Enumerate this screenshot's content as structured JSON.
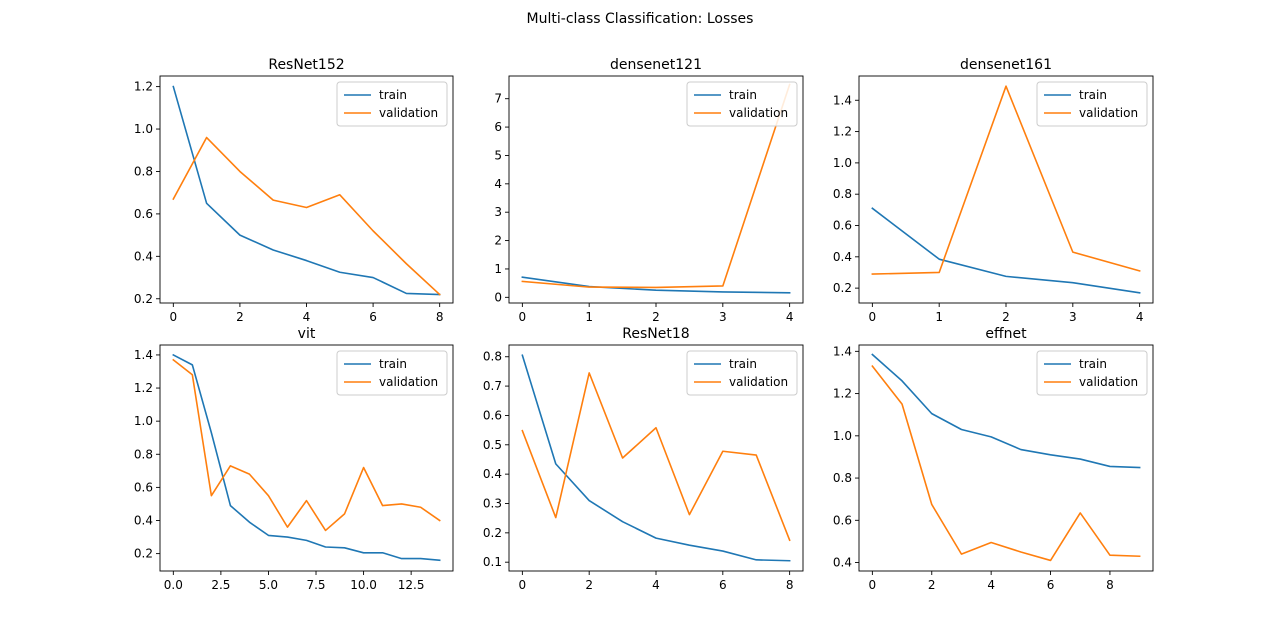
{
  "figure": {
    "suptitle": "Multi-class Classification: Losses"
  },
  "colors": {
    "train": "#1f77b4",
    "validation": "#ff7f0e"
  },
  "chart_data": [
    {
      "type": "line",
      "title": "ResNet152",
      "xlabel": "",
      "ylabel": "",
      "xlim": [
        -0.4,
        8.4
      ],
      "ylim": [
        0.18,
        1.25
      ],
      "xticks": [
        0,
        2,
        4,
        6,
        8
      ],
      "xtick_labels": [
        "0",
        "2",
        "4",
        "6",
        "8"
      ],
      "yticks": [
        0.2,
        0.4,
        0.6,
        0.8,
        1.0,
        1.2
      ],
      "ytick_labels": [
        "0.2",
        "0.4",
        "0.6",
        "0.8",
        "1.0",
        "1.2"
      ],
      "legend": "upper right",
      "series": [
        {
          "name": "train",
          "x": [
            0,
            1,
            2,
            3,
            4,
            5,
            6,
            7,
            8
          ],
          "values": [
            1.2,
            0.65,
            0.5,
            0.43,
            0.38,
            0.325,
            0.3,
            0.225,
            0.22
          ]
        },
        {
          "name": "validation",
          "x": [
            0,
            1,
            2,
            3,
            4,
            5,
            6,
            7,
            8
          ],
          "values": [
            0.67,
            0.96,
            0.8,
            0.665,
            0.63,
            0.69,
            0.52,
            0.365,
            0.22
          ]
        }
      ]
    },
    {
      "type": "line",
      "title": "densenet121",
      "xlabel": "",
      "ylabel": "",
      "xlim": [
        -0.2,
        4.2
      ],
      "ylim": [
        -0.2,
        7.8
      ],
      "xticks": [
        0,
        1,
        2,
        3,
        4
      ],
      "xtick_labels": [
        "0",
        "1",
        "2",
        "3",
        "4"
      ],
      "yticks": [
        0,
        1,
        2,
        3,
        4,
        5,
        6,
        7
      ],
      "ytick_labels": [
        "0",
        "1",
        "2",
        "3",
        "4",
        "5",
        "6",
        "7"
      ],
      "legend": "upper right",
      "series": [
        {
          "name": "train",
          "x": [
            0,
            1,
            2,
            3,
            4
          ],
          "values": [
            0.71,
            0.38,
            0.25,
            0.19,
            0.16
          ]
        },
        {
          "name": "validation",
          "x": [
            0,
            1,
            2,
            3,
            4
          ],
          "values": [
            0.56,
            0.36,
            0.35,
            0.4,
            7.5
          ]
        }
      ]
    },
    {
      "type": "line",
      "title": "densenet161",
      "xlabel": "",
      "ylabel": "",
      "xlim": [
        -0.2,
        4.2
      ],
      "ylim": [
        0.105,
        1.555
      ],
      "xticks": [
        0,
        1,
        2,
        3,
        4
      ],
      "xtick_labels": [
        "0",
        "1",
        "2",
        "3",
        "4"
      ],
      "yticks": [
        0.2,
        0.4,
        0.6,
        0.8,
        1.0,
        1.2,
        1.4
      ],
      "ytick_labels": [
        "0.2",
        "0.4",
        "0.6",
        "0.8",
        "1.0",
        "1.2",
        "1.4"
      ],
      "legend": "upper right",
      "series": [
        {
          "name": "train",
          "x": [
            0,
            1,
            2,
            3,
            4
          ],
          "values": [
            0.71,
            0.385,
            0.275,
            0.235,
            0.17
          ]
        },
        {
          "name": "validation",
          "x": [
            0,
            1,
            2,
            3,
            4
          ],
          "values": [
            0.29,
            0.3,
            1.49,
            0.43,
            0.31
          ]
        }
      ]
    },
    {
      "type": "line",
      "title": "vit",
      "xlabel": "",
      "ylabel": "",
      "xlim": [
        -0.7,
        14.7
      ],
      "ylim": [
        0.095,
        1.46
      ],
      "xticks": [
        0,
        2.5,
        5,
        7.5,
        10,
        12.5
      ],
      "xtick_labels": [
        "0.0",
        "2.5",
        "5.0",
        "7.5",
        "10.0",
        "12.5"
      ],
      "yticks": [
        0.2,
        0.4,
        0.6,
        0.8,
        1.0,
        1.2,
        1.4
      ],
      "ytick_labels": [
        "0.2",
        "0.4",
        "0.6",
        "0.8",
        "1.0",
        "1.2",
        "1.4"
      ],
      "legend": "upper right",
      "series": [
        {
          "name": "train",
          "x": [
            0,
            1,
            2,
            3,
            4,
            5,
            6,
            7,
            8,
            9,
            10,
            11,
            12,
            13,
            14
          ],
          "values": [
            1.4,
            1.34,
            0.93,
            0.49,
            0.39,
            0.31,
            0.3,
            0.28,
            0.24,
            0.235,
            0.205,
            0.205,
            0.17,
            0.17,
            0.16
          ]
        },
        {
          "name": "validation",
          "x": [
            0,
            1,
            2,
            3,
            4,
            5,
            6,
            7,
            8,
            9,
            10,
            11,
            12,
            13,
            14
          ],
          "values": [
            1.37,
            1.28,
            0.55,
            0.73,
            0.68,
            0.55,
            0.36,
            0.52,
            0.34,
            0.44,
            0.72,
            0.49,
            0.5,
            0.48,
            0.4
          ]
        }
      ]
    },
    {
      "type": "line",
      "title": "ResNet18",
      "xlabel": "",
      "ylabel": "",
      "xlim": [
        -0.4,
        8.4
      ],
      "ylim": [
        0.07,
        0.84
      ],
      "xticks": [
        0,
        2,
        4,
        6,
        8
      ],
      "xtick_labels": [
        "0",
        "2",
        "4",
        "6",
        "8"
      ],
      "yticks": [
        0.1,
        0.2,
        0.3,
        0.4,
        0.5,
        0.6,
        0.7,
        0.8
      ],
      "ytick_labels": [
        "0.1",
        "0.2",
        "0.3",
        "0.4",
        "0.5",
        "0.6",
        "0.7",
        "0.8"
      ],
      "legend": "upper right",
      "series": [
        {
          "name": "train",
          "x": [
            0,
            1,
            2,
            3,
            4,
            5,
            6,
            7,
            8
          ],
          "values": [
            0.805,
            0.435,
            0.31,
            0.238,
            0.182,
            0.158,
            0.138,
            0.108,
            0.105
          ]
        },
        {
          "name": "validation",
          "x": [
            0,
            1,
            2,
            3,
            4,
            5,
            6,
            7,
            8
          ],
          "values": [
            0.548,
            0.252,
            0.745,
            0.455,
            0.558,
            0.262,
            0.478,
            0.465,
            0.175
          ]
        }
      ]
    },
    {
      "type": "line",
      "title": "effnet",
      "xlabel": "",
      "ylabel": "",
      "xlim": [
        -0.45,
        9.45
      ],
      "ylim": [
        0.36,
        1.43
      ],
      "xticks": [
        0,
        2,
        4,
        6,
        8
      ],
      "xtick_labels": [
        "0",
        "2",
        "4",
        "6",
        "8"
      ],
      "yticks": [
        0.4,
        0.6,
        0.8,
        1.0,
        1.2,
        1.4
      ],
      "ytick_labels": [
        "0.4",
        "0.6",
        "0.8",
        "1.0",
        "1.2",
        "1.4"
      ],
      "legend": "upper right",
      "series": [
        {
          "name": "train",
          "x": [
            0,
            1,
            2,
            3,
            4,
            5,
            6,
            7,
            8,
            9
          ],
          "values": [
            1.385,
            1.26,
            1.105,
            1.03,
            0.995,
            0.935,
            0.91,
            0.89,
            0.855,
            0.85
          ]
        },
        {
          "name": "validation",
          "x": [
            0,
            1,
            2,
            3,
            4,
            5,
            6,
            7,
            8,
            9
          ],
          "values": [
            1.33,
            1.15,
            0.675,
            0.44,
            0.495,
            0.45,
            0.41,
            0.635,
            0.435,
            0.43
          ]
        }
      ]
    }
  ]
}
